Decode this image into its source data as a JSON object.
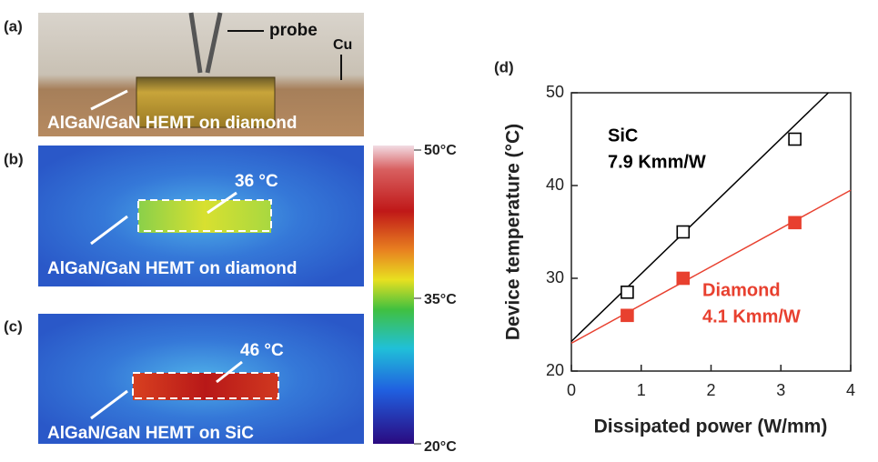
{
  "panels": [
    {
      "label": "(a)",
      "texts": [
        "probe",
        "Cu",
        "AlGaN/GaN HEMT on diamond"
      ]
    },
    {
      "label": "(b)",
      "texts": [
        "36 °C",
        "AlGaN/GaN HEMT on diamond"
      ]
    },
    {
      "label": "(c)",
      "texts": [
        "46 °C",
        "AlGaN/GaN HEMT on SiC"
      ]
    }
  ],
  "colorbar": {
    "labels": [
      "50°C",
      "35°C",
      "20°C"
    ]
  },
  "chart_data": {
    "type": "scatter",
    "panel_label": "(d)",
    "x_label": "Dissipated power (W/mm)",
    "y_label": "Device temperature (°C)",
    "xlim": [
      0,
      4
    ],
    "ylim": [
      20,
      50
    ],
    "xticks": [
      0,
      1,
      2,
      3,
      4
    ],
    "yticks": [
      20,
      30,
      40,
      50
    ],
    "series": [
      {
        "name": "SiC",
        "annotation": "7.9 Kmm/W",
        "color": "#000000",
        "marker": "open-square",
        "x": [
          0.8,
          1.6,
          3.2
        ],
        "values": [
          28.5,
          35,
          45
        ],
        "fit": {
          "x": [
            0,
            3.68
          ],
          "values": [
            23.2,
            50
          ]
        }
      },
      {
        "name": "Diamond",
        "annotation": "4.1 Kmm/W",
        "color": "#e8402f",
        "marker": "filled-square",
        "x": [
          0.8,
          1.6,
          3.2
        ],
        "values": [
          26,
          30,
          36
        ],
        "fit": {
          "x": [
            0,
            4
          ],
          "values": [
            23,
            39.5
          ]
        }
      }
    ]
  }
}
